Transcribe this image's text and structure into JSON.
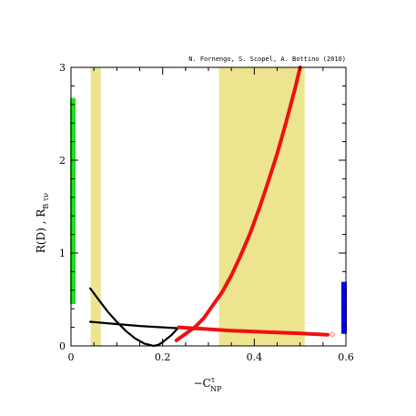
{
  "chart_data": {
    "type": "line",
    "credit": "N. Fornengo, S. Scopel, A. Bottino  (2010)",
    "xlabel": {
      "prefix": "−C",
      "sup": "τ",
      "sub": "NP"
    },
    "ylabel": {
      "main": "R(D)  ,  R",
      "sub": "B τν"
    },
    "xlim": [
      0,
      0.6
    ],
    "ylim": [
      0,
      3
    ],
    "x_ticks": [
      "0",
      "0.2",
      "0.4",
      "0.6"
    ],
    "y_ticks": [
      "0",
      "1",
      "2",
      "3"
    ],
    "bands": [
      {
        "x0": 0.043,
        "x1": 0.065,
        "color": "#ece48e"
      },
      {
        "x0": 0.323,
        "x1": 0.51,
        "color": "#ece48e"
      }
    ],
    "edge_bars": [
      {
        "side": "left",
        "y0": 0.45,
        "y1": 2.67,
        "color": "#22dd22"
      },
      {
        "side": "right",
        "y0": 0.13,
        "y1": 0.69,
        "color": "#0000ee"
      }
    ],
    "series": [
      {
        "color": "#000000",
        "points": [
          [
            0.042,
            0.62
          ],
          [
            0.06,
            0.5
          ],
          [
            0.08,
            0.37
          ],
          [
            0.1,
            0.26
          ],
          [
            0.12,
            0.16
          ],
          [
            0.14,
            0.08
          ],
          [
            0.16,
            0.025
          ],
          [
            0.18,
            0.0
          ],
          [
            0.19,
            0.01
          ],
          [
            0.2,
            0.04
          ],
          [
            0.22,
            0.12
          ],
          [
            0.235,
            0.2
          ]
        ]
      },
      {
        "color": "#000000",
        "points": [
          [
            0.042,
            0.26
          ],
          [
            0.1,
            0.235
          ],
          [
            0.15,
            0.215
          ],
          [
            0.2,
            0.2
          ],
          [
            0.235,
            0.19
          ]
        ]
      },
      {
        "color": "#ee1111",
        "points": [
          [
            0.235,
            0.2
          ],
          [
            0.3,
            0.18
          ],
          [
            0.35,
            0.165
          ],
          [
            0.4,
            0.155
          ],
          [
            0.45,
            0.145
          ],
          [
            0.5,
            0.135
          ],
          [
            0.56,
            0.12
          ]
        ]
      },
      {
        "color": "#ee1111",
        "points": [
          [
            0.23,
            0.06
          ],
          [
            0.25,
            0.13
          ],
          [
            0.27,
            0.2
          ],
          [
            0.29,
            0.3
          ],
          [
            0.31,
            0.44
          ],
          [
            0.33,
            0.58
          ],
          [
            0.35,
            0.76
          ],
          [
            0.37,
            0.97
          ],
          [
            0.39,
            1.2
          ],
          [
            0.41,
            1.47
          ],
          [
            0.43,
            1.76
          ],
          [
            0.45,
            2.07
          ],
          [
            0.47,
            2.42
          ],
          [
            0.49,
            2.79
          ],
          [
            0.5,
            3.0
          ]
        ]
      }
    ],
    "marker": {
      "x": 0.57,
      "y": 0.13,
      "symbol": "◇",
      "color": "#ee1111"
    }
  }
}
